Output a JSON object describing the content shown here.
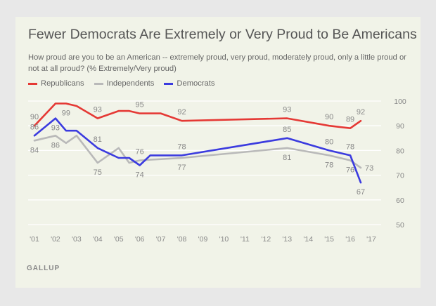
{
  "chart_data": {
    "type": "line",
    "title": "Fewer Democrats Are Extremely or Very Proud to Be Americans",
    "subtitle": "How proud are you to be an American -- extremely proud, very proud, moderately proud, only a little proud or not at all proud? (% Extremely/Very proud)",
    "source": "GALLUP",
    "xlim": [
      2000.7,
      2017.2
    ],
    "ylim": [
      50,
      100
    ],
    "y_ticks": [
      50,
      60,
      70,
      80,
      90,
      100
    ],
    "x_tick_labels": [
      "'01",
      "'02",
      "'03",
      "'04",
      "'05",
      "'06",
      "'07",
      "'08",
      "'09",
      "'10",
      "'11",
      "'12",
      "'13",
      "'14",
      "'15",
      "'16",
      "'17"
    ],
    "x_tick_values": [
      2001,
      2002,
      2003,
      2004,
      2005,
      2006,
      2007,
      2008,
      2009,
      2010,
      2011,
      2012,
      2013,
      2014,
      2015,
      2016,
      2017
    ],
    "grid": true,
    "legend_position": "top-left",
    "series": [
      {
        "name": "Republicans",
        "color": "#e53935",
        "x": [
          2001,
          2002,
          2002.5,
          2003,
          2004,
          2005,
          2005.5,
          2006,
          2006.5,
          2007,
          2008,
          2013,
          2015,
          2016,
          2016.5
        ],
        "y": [
          90,
          99,
          99,
          98,
          93,
          96,
          96,
          95,
          95,
          95,
          92,
          93,
          90,
          89,
          92
        ],
        "labels": [
          {
            "x": 2001,
            "text": "90",
            "pos": "above"
          },
          {
            "x": 2002.5,
            "text": "99",
            "pos": "below"
          },
          {
            "x": 2004,
            "text": "93",
            "pos": "above"
          },
          {
            "x": 2006,
            "text": "95",
            "pos": "above"
          },
          {
            "x": 2008,
            "text": "92",
            "pos": "above"
          },
          {
            "x": 2013,
            "text": "93",
            "pos": "above"
          },
          {
            "x": 2015,
            "text": "90",
            "pos": "above"
          },
          {
            "x": 2016,
            "text": "89",
            "pos": "above"
          },
          {
            "x": 2016.5,
            "text": "92",
            "pos": "above"
          }
        ]
      },
      {
        "name": "Independents",
        "color": "#b9b9b9",
        "x": [
          2001,
          2002,
          2002.5,
          2003,
          2004,
          2005,
          2005.5,
          2006,
          2008,
          2013,
          2015,
          2016,
          2016.5
        ],
        "y": [
          84,
          86,
          83,
          86,
          75,
          81,
          75,
          76,
          77,
          81,
          78,
          76,
          73
        ],
        "labels": [
          {
            "x": 2001,
            "text": "84",
            "pos": "below"
          },
          {
            "x": 2002,
            "text": "86",
            "pos": "below"
          },
          {
            "x": 2004,
            "text": "75",
            "pos": "below"
          },
          {
            "x": 2006,
            "text": "76",
            "pos": "above"
          },
          {
            "x": 2008,
            "text": "77",
            "pos": "below"
          },
          {
            "x": 2013,
            "text": "81",
            "pos": "below"
          },
          {
            "x": 2015,
            "text": "78",
            "pos": "below"
          },
          {
            "x": 2016,
            "text": "76",
            "pos": "below"
          },
          {
            "x": 2016.5,
            "text": "73",
            "pos": "right"
          }
        ]
      },
      {
        "name": "Democrats",
        "color": "#3b3bdf",
        "x": [
          2001,
          2002,
          2002.5,
          2003,
          2004,
          2005,
          2005.5,
          2006,
          2006.5,
          2007,
          2008,
          2013,
          2015,
          2016,
          2016.5
        ],
        "y": [
          86,
          93,
          88,
          88,
          81,
          77,
          77,
          74,
          78,
          78,
          78,
          85,
          80,
          78,
          67
        ],
        "labels": [
          {
            "x": 2001,
            "text": "86",
            "pos": "above"
          },
          {
            "x": 2002,
            "text": "93",
            "pos": "below"
          },
          {
            "x": 2004,
            "text": "81",
            "pos": "above"
          },
          {
            "x": 2006,
            "text": "74",
            "pos": "below"
          },
          {
            "x": 2008,
            "text": "78",
            "pos": "above"
          },
          {
            "x": 2013,
            "text": "85",
            "pos": "above"
          },
          {
            "x": 2015,
            "text": "80",
            "pos": "above"
          },
          {
            "x": 2016,
            "text": "78",
            "pos": "above"
          },
          {
            "x": 2016.5,
            "text": "67",
            "pos": "below"
          }
        ]
      }
    ]
  }
}
